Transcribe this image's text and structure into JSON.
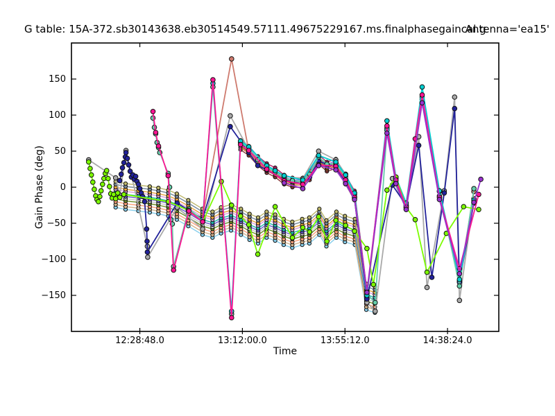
{
  "title": {
    "text": "G table: 15A-372.sb30143638.eb30514549.57111.49675229167.ms.finalphasegaincal.g",
    "antenna": "Antenna='ea15'"
  },
  "axes": {
    "xlabel": "Time",
    "ylabel": "Gain Phase (deg)",
    "xlim_hours": [
      12.0,
      15.0
    ],
    "ylim_deg": [
      -200,
      200
    ],
    "xticks": [
      {
        "hour": 12.48,
        "label": "12:28:48.0"
      },
      {
        "hour": 13.2,
        "label": "13:12:00.0"
      },
      {
        "hour": 13.92,
        "label": "13:55:12.0"
      },
      {
        "hour": 14.64,
        "label": "14:38:24.0"
      }
    ],
    "yticks": [
      {
        "value": 150,
        "label": "150"
      },
      {
        "value": 100,
        "label": "100"
      },
      {
        "value": 50,
        "label": "50"
      },
      {
        "value": 0,
        "label": "0"
      },
      {
        "value": -50,
        "label": "−50"
      },
      {
        "value": -100,
        "label": "−100"
      },
      {
        "value": -150,
        "label": "−150"
      }
    ]
  },
  "chart_data": {
    "type": "line",
    "x_unit": "decimal_hours",
    "y_unit": "degrees_phase",
    "marker": "circle",
    "note": "CASA plotcal-style gain phase vs time; many spw/pol series overlap as thick multicolor ribbons",
    "bundle": {
      "base": [
        [
          12.31,
          -10
        ],
        [
          12.38,
          -13
        ],
        [
          12.47,
          -15
        ],
        [
          12.55,
          -17
        ],
        [
          12.61,
          -19
        ],
        [
          12.68,
          -22
        ],
        [
          12.74,
          -27
        ],
        [
          12.82,
          -36
        ],
        [
          12.92,
          -48
        ],
        [
          12.99,
          -52
        ],
        [
          13.05,
          -46
        ],
        [
          13.12,
          -42
        ],
        [
          13.19,
          -48
        ],
        [
          13.25,
          -55
        ],
        [
          13.31,
          -60
        ],
        [
          13.37,
          -52
        ],
        [
          13.43,
          -56
        ],
        [
          13.49,
          -62
        ],
        [
          13.55,
          -66
        ],
        [
          13.62,
          -62
        ],
        [
          13.67,
          -60
        ],
        [
          13.74,
          -48
        ],
        [
          13.79,
          -64
        ],
        [
          13.86,
          -52
        ],
        [
          13.92,
          -58
        ],
        [
          13.99,
          -62
        ],
        [
          14.07,
          -152
        ],
        [
          14.13,
          -156
        ]
      ],
      "offsets": [
        -18,
        -14,
        -10,
        -6,
        -3,
        0,
        3,
        7,
        10,
        14,
        18
      ],
      "colors": [
        "#87CEEB",
        "#D2B48C",
        "#FFA07A",
        "#6B8E23",
        "#C8C8C8",
        "#6A5ACD",
        "#20B2AA",
        "#DDA0DD",
        "#E8A33D",
        "#778899",
        "#BDB76B"
      ]
    },
    "minibundle": {
      "base": [
        [
          13.187,
          58
        ],
        [
          13.245,
          50
        ],
        [
          13.308,
          36
        ],
        [
          13.371,
          26
        ],
        [
          13.43,
          20
        ],
        [
          13.493,
          10
        ],
        [
          13.551,
          6
        ],
        [
          13.624,
          6
        ],
        [
          13.672,
          16
        ],
        [
          13.735,
          38
        ],
        [
          13.793,
          28
        ],
        [
          13.856,
          32
        ],
        [
          13.924,
          10
        ],
        [
          13.987,
          -12
        ],
        [
          14.074,
          -150
        ]
      ],
      "offsets": [
        -6,
        -3,
        -1,
        1,
        4,
        7
      ],
      "colors": [
        "#8B3A3A",
        "#CD6839",
        "#8B6914",
        "#4682B4",
        "#9370DB",
        "#B22266"
      ]
    },
    "series": [
      {
        "name": "gray",
        "color": "#A9A9A9",
        "points": [
          [
            12.121,
            38
          ],
          [
            12.31,
            13
          ],
          [
            12.34,
            -11
          ],
          [
            12.383,
            51
          ],
          [
            12.533,
            -82
          ],
          [
            12.535,
            -97
          ],
          [
            12.742,
            -28
          ],
          [
            12.921,
            -58
          ],
          [
            13.115,
            99
          ],
          [
            13.245,
            52
          ],
          [
            13.371,
            30
          ],
          [
            13.493,
            15
          ],
          [
            13.624,
            12
          ],
          [
            13.735,
            50
          ],
          [
            13.856,
            38
          ],
          [
            13.924,
            18
          ],
          [
            13.987,
            -8
          ],
          [
            14.074,
            -160
          ],
          [
            14.132,
            -172
          ],
          [
            14.253,
            12
          ],
          [
            14.35,
            -30
          ],
          [
            14.438,
            70
          ],
          [
            14.496,
            -139
          ],
          [
            14.617,
            -5
          ],
          [
            14.69,
            125
          ],
          [
            14.724,
            -157
          ],
          [
            14.825,
            -16
          ]
        ]
      },
      {
        "name": "salmon",
        "color": "#CE7A6E",
        "points": [
          [
            12.824,
            -36
          ],
          [
            12.921,
            -42
          ],
          [
            13.124,
            178
          ],
          [
            13.245,
            50
          ],
          [
            13.308,
            34
          ],
          [
            13.371,
            26
          ],
          [
            13.493,
            11
          ],
          [
            13.624,
            7
          ],
          [
            13.735,
            38
          ],
          [
            13.856,
            30
          ],
          [
            13.924,
            12
          ],
          [
            13.987,
            -13
          ],
          [
            14.074,
            -152
          ],
          [
            14.215,
            82
          ],
          [
            14.278,
            8
          ],
          [
            14.35,
            -27
          ],
          [
            14.462,
            125
          ],
          [
            14.583,
            -12
          ],
          [
            14.724,
            -130
          ],
          [
            14.825,
            -6
          ]
        ]
      },
      {
        "name": "navy",
        "color": "#22229A",
        "points": [
          [
            12.339,
            9
          ],
          [
            12.349,
            18
          ],
          [
            12.358,
            27
          ],
          [
            12.368,
            34
          ],
          [
            12.378,
            42
          ],
          [
            12.383,
            48
          ],
          [
            12.392,
            40
          ],
          [
            12.402,
            31
          ],
          [
            12.412,
            22
          ],
          [
            12.421,
            14
          ],
          [
            12.431,
            17
          ],
          [
            12.441,
            11
          ],
          [
            12.451,
            15
          ],
          [
            12.46,
            8
          ],
          [
            12.47,
            4
          ],
          [
            12.48,
            -2
          ],
          [
            12.49,
            -8
          ],
          [
            12.5,
            -13
          ],
          [
            12.514,
            -20
          ],
          [
            12.528,
            -58
          ],
          [
            12.531,
            -75
          ],
          [
            12.533,
            -90
          ],
          [
            12.742,
            -22
          ],
          [
            12.921,
            -44
          ],
          [
            13.115,
            84
          ],
          [
            13.245,
            48
          ],
          [
            13.308,
            30
          ],
          [
            13.371,
            24
          ],
          [
            13.493,
            10
          ],
          [
            13.624,
            4
          ],
          [
            13.672,
            14
          ],
          [
            13.735,
            36
          ],
          [
            13.856,
            28
          ],
          [
            13.924,
            8
          ],
          [
            13.987,
            -15
          ],
          [
            14.074,
            -155
          ],
          [
            14.253,
            3
          ],
          [
            14.35,
            -25
          ],
          [
            14.438,
            58
          ],
          [
            14.53,
            -125
          ],
          [
            14.617,
            -8
          ],
          [
            14.69,
            109
          ],
          [
            14.724,
            -132
          ],
          [
            14.825,
            -22
          ]
        ]
      },
      {
        "name": "teal",
        "color": "#66CDAA",
        "points": [
          [
            12.572,
            96
          ],
          [
            12.582,
            83
          ],
          [
            12.591,
            74
          ],
          [
            12.601,
            62
          ],
          [
            12.611,
            55
          ],
          [
            12.62,
            48
          ],
          [
            12.679,
            19
          ],
          [
            12.689,
            0
          ],
          [
            12.698,
            -45
          ],
          [
            12.708,
            -51
          ],
          [
            12.717,
            -110
          ],
          [
            12.824,
            -30
          ],
          [
            12.921,
            -46
          ],
          [
            12.993,
            139
          ],
          [
            13.124,
            -176
          ],
          [
            13.187,
            62
          ],
          [
            13.245,
            54
          ],
          [
            13.308,
            38
          ],
          [
            13.371,
            28
          ],
          [
            13.43,
            21
          ],
          [
            13.493,
            13
          ],
          [
            13.551,
            9
          ],
          [
            13.624,
            8
          ],
          [
            13.672,
            18
          ],
          [
            13.735,
            42
          ],
          [
            13.793,
            32
          ],
          [
            13.856,
            33
          ],
          [
            13.924,
            15
          ],
          [
            13.987,
            -10
          ],
          [
            14.074,
            -148
          ],
          [
            14.132,
            -160
          ],
          [
            14.215,
            79
          ],
          [
            14.278,
            12
          ],
          [
            14.35,
            -25
          ],
          [
            14.462,
            122
          ],
          [
            14.583,
            -6
          ],
          [
            14.724,
            -137
          ],
          [
            14.825,
            -2
          ]
        ]
      },
      {
        "name": "cyan",
        "color": "#00CED1",
        "points": [
          [
            12.921,
            -45
          ],
          [
            12.993,
            144
          ],
          [
            13.124,
            -172
          ],
          [
            13.187,
            64
          ],
          [
            13.245,
            56
          ],
          [
            13.371,
            30
          ],
          [
            13.43,
            23
          ],
          [
            13.493,
            16
          ],
          [
            13.624,
            10
          ],
          [
            13.735,
            44
          ],
          [
            13.856,
            35
          ],
          [
            13.924,
            17
          ],
          [
            13.987,
            -8
          ],
          [
            14.074,
            -150
          ],
          [
            14.215,
            92
          ],
          [
            14.278,
            14
          ],
          [
            14.35,
            -22
          ],
          [
            14.462,
            139
          ],
          [
            14.583,
            -5
          ],
          [
            14.724,
            -128
          ],
          [
            14.825,
            -18
          ]
        ]
      },
      {
        "name": "chartreuse",
        "color": "#7CFC00",
        "points": [
          [
            12.121,
            35
          ],
          [
            12.131,
            26
          ],
          [
            12.14,
            17
          ],
          [
            12.15,
            7
          ],
          [
            12.16,
            -3
          ],
          [
            12.17,
            -12
          ],
          [
            12.179,
            -17
          ],
          [
            12.189,
            -20
          ],
          [
            12.199,
            -13
          ],
          [
            12.208,
            -5
          ],
          [
            12.218,
            4
          ],
          [
            12.228,
            12
          ],
          [
            12.237,
            19
          ],
          [
            12.247,
            23
          ],
          [
            12.257,
            12
          ],
          [
            12.267,
            1
          ],
          [
            12.276,
            -9
          ],
          [
            12.286,
            -15
          ],
          [
            12.296,
            -10
          ],
          [
            12.31,
            -16
          ],
          [
            12.325,
            -8
          ],
          [
            12.34,
            -14
          ],
          [
            12.368,
            -10
          ],
          [
            12.68,
            -20
          ],
          [
            12.82,
            -32
          ],
          [
            12.921,
            -48
          ],
          [
            13.052,
            8
          ],
          [
            13.124,
            -25
          ],
          [
            13.187,
            -40
          ],
          [
            13.245,
            -52
          ],
          [
            13.308,
            -93
          ],
          [
            13.43,
            -27
          ],
          [
            13.551,
            -70
          ],
          [
            13.624,
            -56
          ],
          [
            13.672,
            -62
          ],
          [
            13.735,
            -41
          ],
          [
            13.793,
            -75
          ],
          [
            13.856,
            -46
          ],
          [
            13.924,
            -53
          ],
          [
            13.987,
            -61
          ],
          [
            14.074,
            -85
          ],
          [
            14.12,
            -135
          ],
          [
            14.215,
            -4
          ],
          [
            14.278,
            14
          ],
          [
            14.35,
            -28
          ],
          [
            14.413,
            -45
          ],
          [
            14.496,
            -118
          ],
          [
            14.632,
            -64
          ],
          [
            14.753,
            -27
          ],
          [
            14.859,
            -31
          ]
        ]
      },
      {
        "name": "deeppink",
        "color": "#FF1493",
        "points": [
          [
            12.572,
            105
          ],
          [
            12.591,
            76
          ],
          [
            12.611,
            57
          ],
          [
            12.679,
            16
          ],
          [
            12.717,
            -115
          ],
          [
            12.824,
            -33
          ],
          [
            12.921,
            -48
          ],
          [
            12.993,
            149
          ],
          [
            13.124,
            -181
          ],
          [
            13.187,
            59
          ],
          [
            13.245,
            51
          ],
          [
            13.371,
            25
          ],
          [
            13.493,
            9
          ],
          [
            13.624,
            4
          ],
          [
            13.735,
            31
          ],
          [
            13.856,
            29
          ],
          [
            13.924,
            10
          ],
          [
            13.987,
            -14
          ],
          [
            14.074,
            -145
          ],
          [
            14.215,
            85
          ],
          [
            14.278,
            10
          ],
          [
            14.35,
            -28
          ],
          [
            14.413,
            67
          ],
          [
            14.462,
            128
          ],
          [
            14.583,
            -14
          ],
          [
            14.724,
            -113
          ],
          [
            14.859,
            -10
          ]
        ]
      },
      {
        "name": "purple",
        "color": "#9932CC",
        "points": [
          [
            13.493,
            6
          ],
          [
            13.624,
            -2
          ],
          [
            13.735,
            30
          ],
          [
            13.856,
            24
          ],
          [
            13.924,
            5
          ],
          [
            13.987,
            -17
          ],
          [
            14.074,
            -146
          ],
          [
            14.215,
            75
          ],
          [
            14.278,
            5
          ],
          [
            14.35,
            -31
          ],
          [
            14.462,
            117
          ],
          [
            14.583,
            -17
          ],
          [
            14.724,
            -120
          ],
          [
            14.825,
            -21
          ],
          [
            14.874,
            11
          ]
        ]
      }
    ]
  }
}
